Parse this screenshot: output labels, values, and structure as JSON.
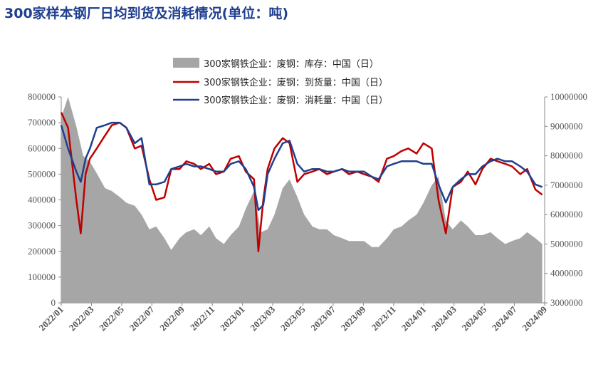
{
  "title": "300家样本钢厂日均到货及消耗情况(单位：吨)",
  "colors": {
    "inventory": "#a6a6a6",
    "arrival": "#c00000",
    "consumption": "#1f3f8f",
    "title": "#1f3f8f"
  },
  "chart_data": {
    "type": "line",
    "title": "300家样本钢厂日均到货及消耗情况(单位：吨)",
    "x_tick_labels": [
      "2022/01",
      "2022/03",
      "2022/05",
      "2022/07",
      "2022/09",
      "2022/11",
      "2023/01",
      "2023/03",
      "2023/05",
      "2023/07",
      "2023/09",
      "2023/11",
      "2024/01",
      "2024/03",
      "2024/05",
      "2024/07",
      "2024/09"
    ],
    "left_axis": {
      "ylim": [
        0,
        800000
      ],
      "ticks": [
        "800000",
        "700000",
        "600000",
        "500000",
        "400000",
        "300000",
        "200000",
        "100000",
        "0"
      ]
    },
    "right_axis": {
      "ylim": [
        3000000,
        10000000
      ],
      "ticks": [
        "10000000",
        "9000000",
        "8000000",
        "7000000",
        "6000000",
        "5000000",
        "4000000",
        "3000000"
      ]
    },
    "legend_position": "top-center",
    "series": [
      {
        "name": "300家钢铁企业：废钢：库存：中国（日）",
        "kind": "area",
        "axis": "right",
        "x": [
          "2022/01/01",
          "2022/01/15",
          "2022/02/01",
          "2022/02/15",
          "2022/03/01",
          "2022/03/15",
          "2022/04/01",
          "2022/04/15",
          "2022/05/01",
          "2022/05/15",
          "2022/06/01",
          "2022/06/15",
          "2022/07/01",
          "2022/07/15",
          "2022/08/01",
          "2022/08/15",
          "2022/09/01",
          "2022/09/15",
          "2022/10/01",
          "2022/10/15",
          "2022/11/01",
          "2022/11/15",
          "2022/12/01",
          "2022/12/15",
          "2023/01/01",
          "2023/01/15",
          "2023/02/01",
          "2023/02/15",
          "2023/03/01",
          "2023/03/15",
          "2023/04/01",
          "2023/04/15",
          "2023/05/01",
          "2023/05/15",
          "2023/06/01",
          "2023/06/15",
          "2023/07/01",
          "2023/07/15",
          "2023/08/01",
          "2023/08/15",
          "2023/09/01",
          "2023/09/15",
          "2023/10/01",
          "2023/10/15",
          "2023/11/01",
          "2023/11/15",
          "2023/12/01",
          "2023/12/15",
          "2024/01/01",
          "2024/01/15",
          "2024/02/01",
          "2024/02/15",
          "2024/03/01",
          "2024/03/15",
          "2024/04/01",
          "2024/04/15",
          "2024/05/01",
          "2024/05/15",
          "2024/06/01",
          "2024/06/15",
          "2024/07/01",
          "2024/07/15",
          "2024/08/01",
          "2024/08/15",
          "2024/09/01",
          "2024/09/15"
        ],
        "values": [
          9300000,
          10000000,
          9000000,
          8000000,
          7800000,
          7400000,
          6900000,
          6800000,
          6600000,
          6400000,
          6300000,
          6000000,
          5500000,
          5600000,
          5200000,
          4800000,
          5200000,
          5400000,
          5500000,
          5300000,
          5600000,
          5200000,
          5000000,
          5300000,
          5600000,
          6200000,
          6800000,
          5400000,
          5500000,
          6000000,
          6900000,
          7200000,
          6600000,
          6000000,
          5600000,
          5500000,
          5500000,
          5300000,
          5200000,
          5100000,
          5100000,
          5100000,
          4900000,
          4900000,
          5200000,
          5500000,
          5600000,
          5800000,
          6000000,
          6400000,
          7000000,
          7300000,
          5800000,
          5500000,
          5800000,
          5600000,
          5300000,
          5300000,
          5400000,
          5200000,
          5000000,
          5100000,
          5200000,
          5400000,
          5200000,
          5000000
        ]
      },
      {
        "name": "300家钢铁企业：废钢：到货量：中国（日）",
        "kind": "line",
        "axis": "left",
        "x": [
          "2022/01/01",
          "2022/01/15",
          "2022/02/01",
          "2022/02/10",
          "2022/02/20",
          "2022/03/01",
          "2022/03/15",
          "2022/04/01",
          "2022/04/15",
          "2022/05/01",
          "2022/05/15",
          "2022/06/01",
          "2022/06/15",
          "2022/07/01",
          "2022/07/15",
          "2022/08/01",
          "2022/08/15",
          "2022/09/01",
          "2022/09/15",
          "2022/10/01",
          "2022/10/15",
          "2022/11/01",
          "2022/11/15",
          "2022/12/01",
          "2022/12/15",
          "2023/01/01",
          "2023/01/15",
          "2023/02/01",
          "2023/02/10",
          "2023/02/20",
          "2023/03/01",
          "2023/03/15",
          "2023/04/01",
          "2023/04/15",
          "2023/05/01",
          "2023/05/15",
          "2023/06/01",
          "2023/06/15",
          "2023/07/01",
          "2023/07/15",
          "2023/08/01",
          "2023/08/15",
          "2023/09/01",
          "2023/09/15",
          "2023/10/01",
          "2023/10/15",
          "2023/11/01",
          "2023/11/15",
          "2023/12/01",
          "2023/12/15",
          "2024/01/01",
          "2024/01/15",
          "2024/02/01",
          "2024/02/15",
          "2024/03/01",
          "2024/03/15",
          "2024/04/01",
          "2024/04/15",
          "2024/05/01",
          "2024/05/15",
          "2024/06/01",
          "2024/06/15",
          "2024/07/01",
          "2024/07/15",
          "2024/08/01",
          "2024/08/15",
          "2024/09/01",
          "2024/09/15"
        ],
        "values": [
          740000,
          680000,
          400000,
          270000,
          500000,
          560000,
          600000,
          650000,
          690000,
          700000,
          680000,
          600000,
          610000,
          480000,
          400000,
          410000,
          520000,
          520000,
          550000,
          540000,
          520000,
          540000,
          500000,
          510000,
          560000,
          570000,
          510000,
          480000,
          200000,
          400000,
          520000,
          600000,
          640000,
          620000,
          470000,
          500000,
          510000,
          520000,
          500000,
          510000,
          520000,
          500000,
          510000,
          500000,
          490000,
          470000,
          560000,
          570000,
          590000,
          600000,
          580000,
          620000,
          600000,
          400000,
          270000,
          450000,
          470000,
          510000,
          460000,
          520000,
          560000,
          550000,
          540000,
          530000,
          500000,
          520000,
          440000,
          420000
        ]
      },
      {
        "name": "300家钢铁企业：废钢：消耗量：中国（日）",
        "kind": "line",
        "axis": "left",
        "x": [
          "2022/01/01",
          "2022/01/15",
          "2022/02/01",
          "2022/02/10",
          "2022/02/20",
          "2022/03/01",
          "2022/03/15",
          "2022/04/01",
          "2022/04/15",
          "2022/05/01",
          "2022/05/15",
          "2022/06/01",
          "2022/06/15",
          "2022/07/01",
          "2022/07/15",
          "2022/08/01",
          "2022/08/15",
          "2022/09/01",
          "2022/09/15",
          "2022/10/01",
          "2022/10/15",
          "2022/11/01",
          "2022/11/15",
          "2022/12/01",
          "2022/12/15",
          "2023/01/01",
          "2023/01/15",
          "2023/02/01",
          "2023/02/10",
          "2023/02/20",
          "2023/03/01",
          "2023/03/15",
          "2023/04/01",
          "2023/04/15",
          "2023/05/01",
          "2023/05/15",
          "2023/06/01",
          "2023/06/15",
          "2023/07/01",
          "2023/07/15",
          "2023/08/01",
          "2023/08/15",
          "2023/09/01",
          "2023/09/15",
          "2023/10/01",
          "2023/10/15",
          "2023/11/01",
          "2023/11/15",
          "2023/12/01",
          "2023/12/15",
          "2024/01/01",
          "2024/01/15",
          "2024/02/01",
          "2024/02/15",
          "2024/03/01",
          "2024/03/15",
          "2024/04/01",
          "2024/04/15",
          "2024/05/01",
          "2024/05/15",
          "2024/06/01",
          "2024/06/15",
          "2024/07/01",
          "2024/07/15",
          "2024/08/01",
          "2024/08/15",
          "2024/09/01",
          "2024/09/15"
        ],
        "values": [
          690000,
          600000,
          510000,
          470000,
          560000,
          600000,
          680000,
          690000,
          700000,
          700000,
          680000,
          620000,
          640000,
          460000,
          460000,
          470000,
          520000,
          530000,
          540000,
          530000,
          530000,
          520000,
          510000,
          510000,
          540000,
          550000,
          520000,
          450000,
          360000,
          380000,
          500000,
          560000,
          620000,
          630000,
          540000,
          510000,
          520000,
          520000,
          510000,
          510000,
          520000,
          510000,
          510000,
          510000,
          490000,
          480000,
          530000,
          540000,
          550000,
          550000,
          550000,
          540000,
          540000,
          460000,
          390000,
          450000,
          480000,
          500000,
          500000,
          530000,
          550000,
          560000,
          550000,
          550000,
          530000,
          510000,
          460000,
          450000
        ]
      }
    ]
  }
}
